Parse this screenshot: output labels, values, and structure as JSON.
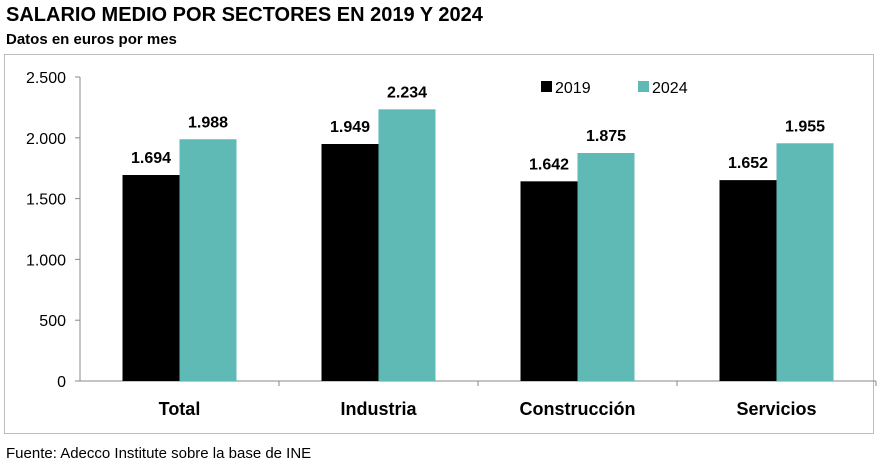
{
  "chart_data": {
    "type": "bar",
    "title": "SALARIO MEDIO POR SECTORES EN 2019 Y 2024",
    "subtitle": "Datos en euros por mes",
    "categories": [
      "Total",
      "Industria",
      "Construcción",
      "Servicios"
    ],
    "series": [
      {
        "name": "2019",
        "color": "#000000",
        "values": [
          1694,
          1949,
          1642,
          1652
        ],
        "labels": [
          "1.694",
          "1.949",
          "1.642",
          "1.652"
        ]
      },
      {
        "name": "2024",
        "color": "#5fb9b4",
        "values": [
          1988,
          2234,
          1875,
          1955
        ],
        "labels": [
          "1.988",
          "2.234",
          "1.875",
          "1.955"
        ]
      }
    ],
    "ylim": [
      0,
      2500
    ],
    "yticks": [
      0,
      500,
      1000,
      1500,
      2000,
      2500
    ],
    "ytick_labels": [
      "0",
      "500",
      "1.000",
      "1.500",
      "2.000",
      "2.500"
    ],
    "legend_position": "top-right",
    "grid": false,
    "source": "Fuente: Adecco Institute sobre la base de INE"
  }
}
